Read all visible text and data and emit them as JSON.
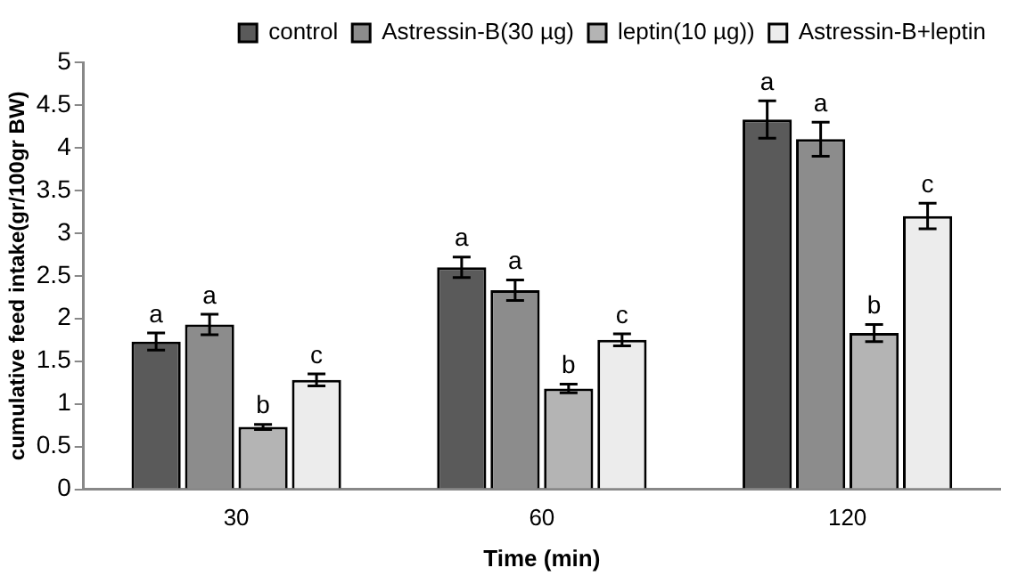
{
  "chart_data": {
    "type": "bar",
    "xlabel": "Time (min)",
    "ylabel": "cumulative feed intake(gr/100gr BW)",
    "categories": [
      "30",
      "60",
      "120"
    ],
    "series": [
      {
        "name": "control",
        "color": "#5a5a5a",
        "values": [
          1.73,
          2.6,
          4.33
        ],
        "errors": [
          0.1,
          0.12,
          0.22
        ]
      },
      {
        "name": "Astressin-B(30 µg)",
        "color": "#8c8c8c",
        "values": [
          1.93,
          2.33,
          4.1
        ],
        "errors": [
          0.12,
          0.12,
          0.2
        ]
      },
      {
        "name": "leptin(10 µg))",
        "color": "#b4b4b4",
        "values": [
          0.73,
          1.18,
          1.83
        ],
        "errors": [
          0.03,
          0.05,
          0.1
        ]
      },
      {
        "name": "Astressin-B+leptin",
        "color": "#ececec",
        "values": [
          1.28,
          1.75,
          3.2
        ],
        "errors": [
          0.07,
          0.07,
          0.15
        ]
      }
    ],
    "ylim": [
      0,
      5
    ],
    "yticks": [
      0,
      0.5,
      1,
      1.5,
      2,
      2.5,
      3,
      3.5,
      4,
      4.5,
      5
    ],
    "grid": false,
    "legend": "top right",
    "annotations": [
      "a",
      "a",
      "b",
      "c",
      "a",
      "a",
      "b",
      "c",
      "a",
      "a",
      "b",
      "c"
    ]
  }
}
